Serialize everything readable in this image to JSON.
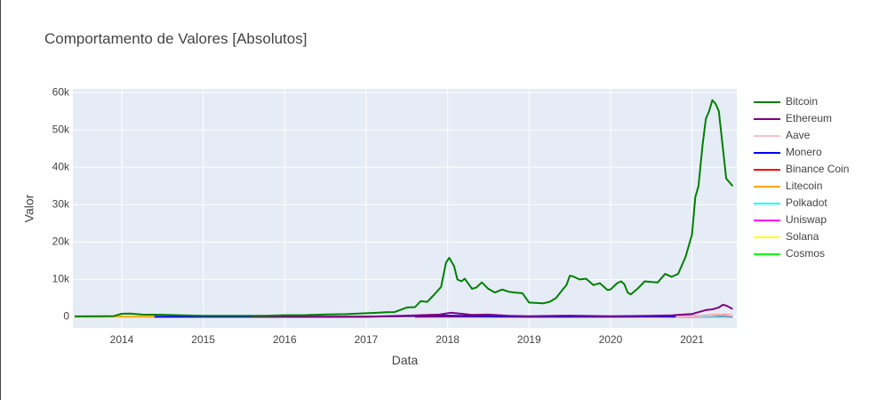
{
  "chart_data": {
    "type": "line",
    "title": "Comportamento de Valores [Absolutos]",
    "xlabel": "Data",
    "ylabel": "Valor",
    "xlim": [
      2013.4,
      2021.55
    ],
    "ylim": [
      -3000,
      61000
    ],
    "x_ticks": [
      {
        "value": 2014,
        "label": "2014"
      },
      {
        "value": 2015,
        "label": "2015"
      },
      {
        "value": 2016,
        "label": "2016"
      },
      {
        "value": 2017,
        "label": "2017"
      },
      {
        "value": 2018,
        "label": "2018"
      },
      {
        "value": 2019,
        "label": "2019"
      },
      {
        "value": 2020,
        "label": "2020"
      },
      {
        "value": 2021,
        "label": "2021"
      }
    ],
    "y_ticks": [
      {
        "value": 0,
        "label": "0"
      },
      {
        "value": 10000,
        "label": "10k"
      },
      {
        "value": 20000,
        "label": "20k"
      },
      {
        "value": 30000,
        "label": "30k"
      },
      {
        "value": 40000,
        "label": "40k"
      },
      {
        "value": 50000,
        "label": "50k"
      },
      {
        "value": 60000,
        "label": "60k"
      }
    ],
    "grid": true,
    "legend_position": "right",
    "plot_background": "#e5ecf6",
    "series": [
      {
        "name": "Bitcoin",
        "color": "#008000",
        "points": [
          [
            2013.42,
            120
          ],
          [
            2013.75,
            150
          ],
          [
            2013.9,
            200
          ],
          [
            2014.0,
            800
          ],
          [
            2014.1,
            850
          ],
          [
            2014.25,
            600
          ],
          [
            2014.5,
            550
          ],
          [
            2014.75,
            400
          ],
          [
            2015.0,
            280
          ],
          [
            2015.25,
            250
          ],
          [
            2015.5,
            270
          ],
          [
            2015.75,
            260
          ],
          [
            2016.0,
            420
          ],
          [
            2016.25,
            440
          ],
          [
            2016.5,
            650
          ],
          [
            2016.75,
            700
          ],
          [
            2017.0,
            950
          ],
          [
            2017.1,
            1050
          ],
          [
            2017.25,
            1200
          ],
          [
            2017.35,
            1250
          ],
          [
            2017.5,
            2500
          ],
          [
            2017.6,
            2600
          ],
          [
            2017.67,
            4200
          ],
          [
            2017.75,
            4000
          ],
          [
            2017.83,
            5800
          ],
          [
            2017.92,
            8000
          ],
          [
            2017.98,
            14500
          ],
          [
            2018.02,
            15800
          ],
          [
            2018.08,
            13500
          ],
          [
            2018.12,
            10000
          ],
          [
            2018.17,
            9500
          ],
          [
            2018.21,
            10200
          ],
          [
            2018.25,
            9000
          ],
          [
            2018.3,
            7500
          ],
          [
            2018.35,
            7800
          ],
          [
            2018.42,
            9200
          ],
          [
            2018.5,
            7500
          ],
          [
            2018.58,
            6500
          ],
          [
            2018.67,
            7300
          ],
          [
            2018.75,
            6700
          ],
          [
            2018.83,
            6500
          ],
          [
            2018.92,
            6300
          ],
          [
            2019.0,
            3800
          ],
          [
            2019.08,
            3700
          ],
          [
            2019.17,
            3600
          ],
          [
            2019.25,
            4000
          ],
          [
            2019.33,
            5000
          ],
          [
            2019.42,
            7500
          ],
          [
            2019.46,
            8500
          ],
          [
            2019.5,
            11000
          ],
          [
            2019.54,
            10800
          ],
          [
            2019.62,
            10000
          ],
          [
            2019.7,
            10200
          ],
          [
            2019.79,
            8500
          ],
          [
            2019.87,
            9000
          ],
          [
            2019.96,
            7200
          ],
          [
            2020.0,
            7300
          ],
          [
            2020.08,
            9000
          ],
          [
            2020.13,
            9500
          ],
          [
            2020.17,
            8700
          ],
          [
            2020.21,
            6500
          ],
          [
            2020.25,
            6000
          ],
          [
            2020.33,
            7500
          ],
          [
            2020.42,
            9500
          ],
          [
            2020.5,
            9300
          ],
          [
            2020.58,
            9200
          ],
          [
            2020.67,
            11500
          ],
          [
            2020.75,
            10700
          ],
          [
            2020.83,
            11500
          ],
          [
            2020.92,
            16000
          ],
          [
            2021.0,
            22000
          ],
          [
            2021.04,
            32000
          ],
          [
            2021.08,
            35000
          ],
          [
            2021.13,
            46000
          ],
          [
            2021.17,
            53000
          ],
          [
            2021.21,
            55000
          ],
          [
            2021.25,
            58000
          ],
          [
            2021.29,
            57000
          ],
          [
            2021.33,
            55000
          ],
          [
            2021.42,
            37000
          ],
          [
            2021.5,
            35000
          ]
        ]
      },
      {
        "name": "Ethereum",
        "color": "#800080",
        "points": [
          [
            2015.6,
            10
          ],
          [
            2016.0,
            10
          ],
          [
            2017.0,
            10
          ],
          [
            2017.5,
            300
          ],
          [
            2017.9,
            600
          ],
          [
            2018.04,
            1100
          ],
          [
            2018.17,
            800
          ],
          [
            2018.3,
            500
          ],
          [
            2018.5,
            600
          ],
          [
            2018.75,
            250
          ],
          [
            2019.0,
            150
          ],
          [
            2019.5,
            300
          ],
          [
            2020.0,
            150
          ],
          [
            2020.5,
            250
          ],
          [
            2020.75,
            400
          ],
          [
            2021.0,
            750
          ],
          [
            2021.17,
            1800
          ],
          [
            2021.25,
            2000
          ],
          [
            2021.33,
            2500
          ],
          [
            2021.38,
            3200
          ],
          [
            2021.42,
            3000
          ],
          [
            2021.5,
            2100
          ]
        ]
      },
      {
        "name": "Aave",
        "color": "#ffc0cb",
        "points": [
          [
            2020.8,
            50
          ],
          [
            2021.0,
            100
          ],
          [
            2021.2,
            300
          ],
          [
            2021.35,
            500
          ],
          [
            2021.5,
            300
          ]
        ]
      },
      {
        "name": "Monero",
        "color": "#0000ff",
        "points": [
          [
            2014.4,
            2
          ],
          [
            2015.0,
            1
          ],
          [
            2016.0,
            1
          ],
          [
            2017.0,
            20
          ],
          [
            2017.9,
            300
          ],
          [
            2018.5,
            150
          ],
          [
            2019.0,
            50
          ],
          [
            2020.0,
            70
          ],
          [
            2021.0,
            150
          ],
          [
            2021.35,
            400
          ],
          [
            2021.5,
            220
          ]
        ]
      },
      {
        "name": "Binance Coin",
        "color": "#ff0000",
        "points": [
          [
            2017.6,
            1
          ],
          [
            2018.0,
            10
          ],
          [
            2018.5,
            15
          ],
          [
            2019.0,
            6
          ],
          [
            2019.5,
            30
          ],
          [
            2020.0,
            15
          ],
          [
            2020.5,
            20
          ],
          [
            2021.0,
            40
          ],
          [
            2021.3,
            500
          ],
          [
            2021.4,
            550
          ],
          [
            2021.5,
            300
          ]
        ]
      },
      {
        "name": "Litecoin",
        "color": "#ffa500",
        "points": [
          [
            2013.42,
            4
          ],
          [
            2013.9,
            30
          ],
          [
            2014.0,
            30
          ],
          [
            2015.0,
            3
          ],
          [
            2016.0,
            4
          ],
          [
            2017.0,
            5
          ],
          [
            2017.9,
            250
          ],
          [
            2018.5,
            100
          ],
          [
            2019.0,
            30
          ],
          [
            2019.5,
            120
          ],
          [
            2020.0,
            45
          ],
          [
            2021.0,
            150
          ],
          [
            2021.35,
            300
          ],
          [
            2021.5,
            140
          ]
        ]
      },
      {
        "name": "Polkadot",
        "color": "#00ffff",
        "points": [
          [
            2020.65,
            3
          ],
          [
            2021.0,
            10
          ],
          [
            2021.25,
            40
          ],
          [
            2021.5,
            15
          ]
        ]
      },
      {
        "name": "Uniswap",
        "color": "#ff00ff",
        "points": [
          [
            2020.7,
            3
          ],
          [
            2021.0,
            5
          ],
          [
            2021.3,
            40
          ],
          [
            2021.5,
            18
          ]
        ]
      },
      {
        "name": "Solana",
        "color": "#ffff00",
        "points": [
          [
            2020.3,
            1
          ],
          [
            2021.0,
            2
          ],
          [
            2021.3,
            40
          ],
          [
            2021.5,
            33
          ]
        ]
      },
      {
        "name": "Cosmos",
        "color": "#00ff00",
        "points": [
          [
            2019.3,
            5
          ],
          [
            2020.0,
            4
          ],
          [
            2020.5,
            5
          ],
          [
            2021.0,
            7
          ],
          [
            2021.3,
            25
          ],
          [
            2021.5,
            12
          ]
        ]
      }
    ]
  }
}
